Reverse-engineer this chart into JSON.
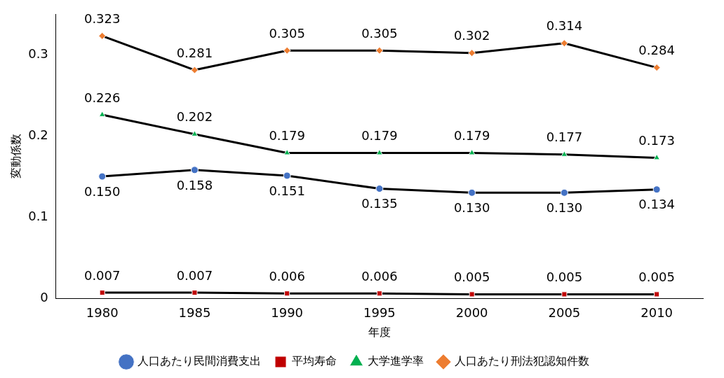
{
  "chart_data": {
    "type": "line",
    "xlabel": "年度",
    "ylabel": "変動係数",
    "categories": [
      "1980",
      "1985",
      "1990",
      "1995",
      "2000",
      "2005",
      "2010"
    ],
    "ylim": [
      0,
      0.35
    ],
    "yticks": [
      0,
      0.1,
      0.2,
      0.3
    ],
    "grid": false,
    "legend": "bottom",
    "series": [
      {
        "name": "人口あたり民間消費支出",
        "color": "#4472c4",
        "marker": "circle",
        "values": [
          0.15,
          0.158,
          0.151,
          0.135,
          0.13,
          0.13,
          0.134
        ],
        "value_labels": [
          "0.150",
          "0.158",
          "0.151",
          "0.135",
          "0.130",
          "0.130",
          "0.134"
        ]
      },
      {
        "name": "平均寿命",
        "color": "#c00000",
        "marker": "square",
        "values": [
          0.007,
          0.007,
          0.006,
          0.006,
          0.005,
          0.005,
          0.005
        ],
        "value_labels": [
          "0.007",
          "0.007",
          "0.006",
          "0.006",
          "0.005",
          "0.005",
          "0.005"
        ]
      },
      {
        "name": "大学進学率",
        "color": "#00b050",
        "marker": "triangle",
        "values": [
          0.226,
          0.202,
          0.179,
          0.179,
          0.179,
          0.177,
          0.173
        ],
        "value_labels": [
          "0.226",
          "0.202",
          "0.179",
          "0.179",
          "0.179",
          "0.177",
          "0.173"
        ]
      },
      {
        "name": "人口あたり刑法犯認知件数",
        "color": "#ed7d31",
        "marker": "diamond",
        "values": [
          0.323,
          0.281,
          0.305,
          0.305,
          0.302,
          0.314,
          0.284
        ],
        "value_labels": [
          "0.323",
          "0.281",
          "0.305",
          "0.305",
          "0.302",
          "0.314",
          "0.284"
        ]
      }
    ]
  }
}
